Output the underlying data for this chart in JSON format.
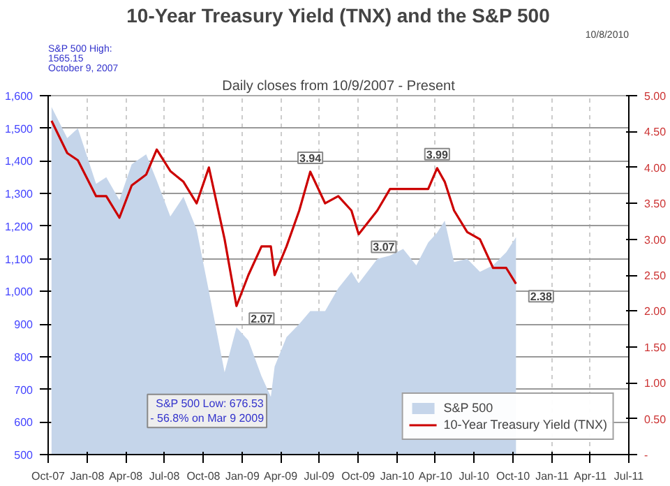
{
  "chart_data": {
    "type": "area",
    "title": "10-Year Treasury Yield (TNX) and the S&P 500",
    "subtitle": "Daily closes from 10/9/2007 - Present",
    "x": [
      "2007-10-09",
      "2007-11-15",
      "2007-12-10",
      "2008-01-22",
      "2008-02-15",
      "2008-03-17",
      "2008-04-15",
      "2008-05-19",
      "2008-06-13",
      "2008-07-15",
      "2008-08-15",
      "2008-09-15",
      "2008-10-14",
      "2008-11-20",
      "2008-12-18",
      "2009-01-15",
      "2009-02-15",
      "2009-03-09",
      "2009-03-18",
      "2009-04-15",
      "2009-05-15",
      "2009-06-10",
      "2009-07-15",
      "2009-08-15",
      "2009-09-15",
      "2009-10-02",
      "2009-11-15",
      "2009-12-15",
      "2010-01-15",
      "2010-02-15",
      "2010-03-15",
      "2010-04-05",
      "2010-04-23",
      "2010-05-15",
      "2010-06-15",
      "2010-07-15",
      "2010-08-15",
      "2010-09-15",
      "2010-10-08"
    ],
    "series": [
      {
        "name": "S&P 500",
        "color": "#c5d5ea",
        "values": [
          1565,
          1470,
          1500,
          1330,
          1350,
          1280,
          1390,
          1420,
          1340,
          1230,
          1290,
          1190,
          1000,
          752,
          890,
          850,
          740,
          677,
          770,
          860,
          900,
          940,
          940,
          1010,
          1060,
          1025,
          1100,
          1110,
          1130,
          1080,
          1150,
          1180,
          1217,
          1090,
          1100,
          1060,
          1080,
          1120,
          1166
        ]
      },
      {
        "name": "10-Year Treasury Yield (TNX)",
        "type": "line",
        "axis": "y2",
        "color": "#cc0000",
        "values": [
          4.65,
          4.2,
          4.1,
          3.6,
          3.6,
          3.3,
          3.75,
          3.9,
          4.25,
          3.95,
          3.8,
          3.5,
          4.0,
          3.0,
          2.07,
          2.5,
          2.9,
          2.9,
          2.5,
          2.9,
          3.4,
          3.94,
          3.5,
          3.6,
          3.4,
          3.07,
          3.4,
          3.7,
          3.7,
          3.7,
          3.7,
          3.99,
          3.8,
          3.4,
          3.1,
          3.0,
          2.6,
          2.6,
          2.38
        ],
        "value_labels": [
          null,
          null,
          null,
          null,
          null,
          null,
          null,
          null,
          null,
          null,
          null,
          null,
          null,
          null,
          "2.07",
          null,
          null,
          null,
          null,
          null,
          null,
          "3.94",
          null,
          null,
          null,
          "3.07",
          null,
          null,
          null,
          null,
          null,
          "3.99",
          null,
          null,
          null,
          null,
          null,
          null,
          "2.38"
        ]
      }
    ],
    "xlim": [
      "2007-10-01",
      "2011-07-01"
    ],
    "xticks": [
      {
        "value": "2007-10-01",
        "label": "Oct-07"
      },
      {
        "value": "2008-01-01",
        "label": "Jan-08"
      },
      {
        "value": "2008-04-01",
        "label": "Apr-08"
      },
      {
        "value": "2008-07-01",
        "label": "Jul-08"
      },
      {
        "value": "2008-10-01",
        "label": "Oct-08"
      },
      {
        "value": "2009-01-01",
        "label": "Jan-09"
      },
      {
        "value": "2009-04-01",
        "label": "Apr-09"
      },
      {
        "value": "2009-07-01",
        "label": "Jul-09"
      },
      {
        "value": "2009-10-01",
        "label": "Oct-09"
      },
      {
        "value": "2010-01-01",
        "label": "Jan-10"
      },
      {
        "value": "2010-04-01",
        "label": "Apr-10"
      },
      {
        "value": "2010-07-01",
        "label": "Jul-10"
      },
      {
        "value": "2010-10-01",
        "label": "Oct-10"
      },
      {
        "value": "2011-01-01",
        "label": "Jan-11"
      },
      {
        "value": "2011-04-01",
        "label": "Apr-11"
      },
      {
        "value": "2011-07-01",
        "label": "Jul-11"
      }
    ],
    "ylim": [
      500,
      1600
    ],
    "yticks": [
      {
        "value": 500,
        "label": "500"
      },
      {
        "value": 600,
        "label": "600"
      },
      {
        "value": 700,
        "label": "700"
      },
      {
        "value": 800,
        "label": "800"
      },
      {
        "value": 900,
        "label": "900"
      },
      {
        "value": 1000,
        "label": "1,000"
      },
      {
        "value": 1100,
        "label": "1,100"
      },
      {
        "value": 1200,
        "label": "1,200"
      },
      {
        "value": 1300,
        "label": "1,300"
      },
      {
        "value": 1400,
        "label": "1,400"
      },
      {
        "value": 1500,
        "label": "1,500"
      },
      {
        "value": 1600,
        "label": "1,600"
      }
    ],
    "y2lim": [
      0,
      5
    ],
    "y2ticks": [
      {
        "value": 0,
        "label": "-"
      },
      {
        "value": 0.5,
        "label": "0.50"
      },
      {
        "value": 1,
        "label": "1.00"
      },
      {
        "value": 1.5,
        "label": "1.50"
      },
      {
        "value": 2,
        "label": "2.00"
      },
      {
        "value": 2.5,
        "label": "2.50"
      },
      {
        "value": 3,
        "label": "3.00"
      },
      {
        "value": 3.5,
        "label": "3.50"
      },
      {
        "value": 4,
        "label": "4.00"
      },
      {
        "value": 4.5,
        "label": "4.50"
      },
      {
        "value": 5,
        "label": "5.00"
      }
    ],
    "annotations": [
      "S&P 500 High:\n1565.15\nOctober 9, 2007",
      {
        "text": "S&P 500 Low: 676.53\n- 56.8% on Mar 9 2009",
        "x": "2009-03-09",
        "y": 677
      },
      "10/8/2010"
    ],
    "grid": true,
    "legend": "bottom right"
  }
}
